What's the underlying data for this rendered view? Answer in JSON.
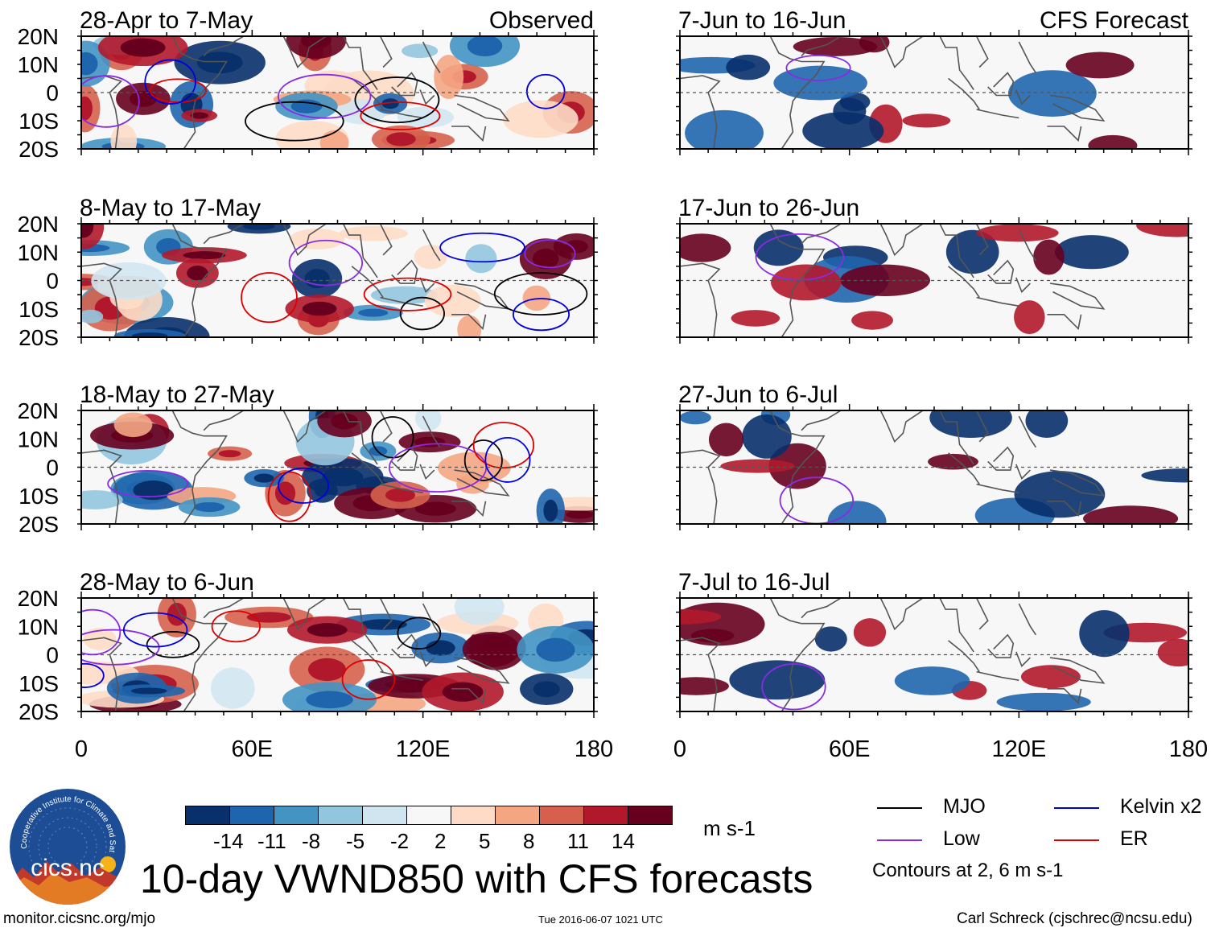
{
  "chart_data": {
    "type": "heatmap",
    "title": "10-day VWND850 with CFS forecasts",
    "variable": "VWND850",
    "units": "m s-1",
    "observed_label": "Observed",
    "forecast_label": "CFS Forecast",
    "x_ticks": [
      "0",
      "60E",
      "120E",
      "180"
    ],
    "y_ticks": [
      "20N",
      "10N",
      "0",
      "10S",
      "20S"
    ],
    "xlim": [
      0,
      180
    ],
    "ylim": [
      -20,
      20
    ],
    "observed_panels": [
      {
        "title": "28-Apr to 7-May"
      },
      {
        "title": "8-May to 17-May"
      },
      {
        "title": "18-May to 27-May"
      },
      {
        "title": "28-May to 6-Jun"
      }
    ],
    "forecast_panels": [
      {
        "title": "7-Jun to 16-Jun"
      },
      {
        "title": "17-Jun to 26-Jun"
      },
      {
        "title": "27-Jun to 6-Jul"
      },
      {
        "title": "7-Jul to 16-Jul"
      }
    ],
    "colorbar": {
      "levels": [
        "-14",
        "-11",
        "-8",
        "-5",
        "-2",
        "2",
        "5",
        "8",
        "11",
        "14"
      ],
      "colors": [
        "#08306b",
        "#1f65ad",
        "#4393c3",
        "#92c5de",
        "#d1e5f0",
        "#f7f7f7",
        "#fddbc7",
        "#f4a582",
        "#d6604d",
        "#b2182b",
        "#67001f"
      ]
    },
    "legend": [
      {
        "label": "MJO",
        "color": "#000000"
      },
      {
        "label": "Kelvin x2",
        "color": "#0000dd"
      },
      {
        "label": "Low",
        "color": "#8a2be2"
      },
      {
        "label": "ER",
        "color": "#dd0000"
      }
    ],
    "contour_note": "Contours at 2, 6 m s-1"
  },
  "footer": {
    "logo_text": "cics.nc",
    "logo_ring_text": "Cooperative Institute for Climate and Satellites",
    "url": "monitor.cicsnc.org/mjo",
    "timestamp": "Tue 2016-06-07 1021 UTC",
    "author": "Carl Schreck (cjschrec@ncsu.edu)"
  }
}
